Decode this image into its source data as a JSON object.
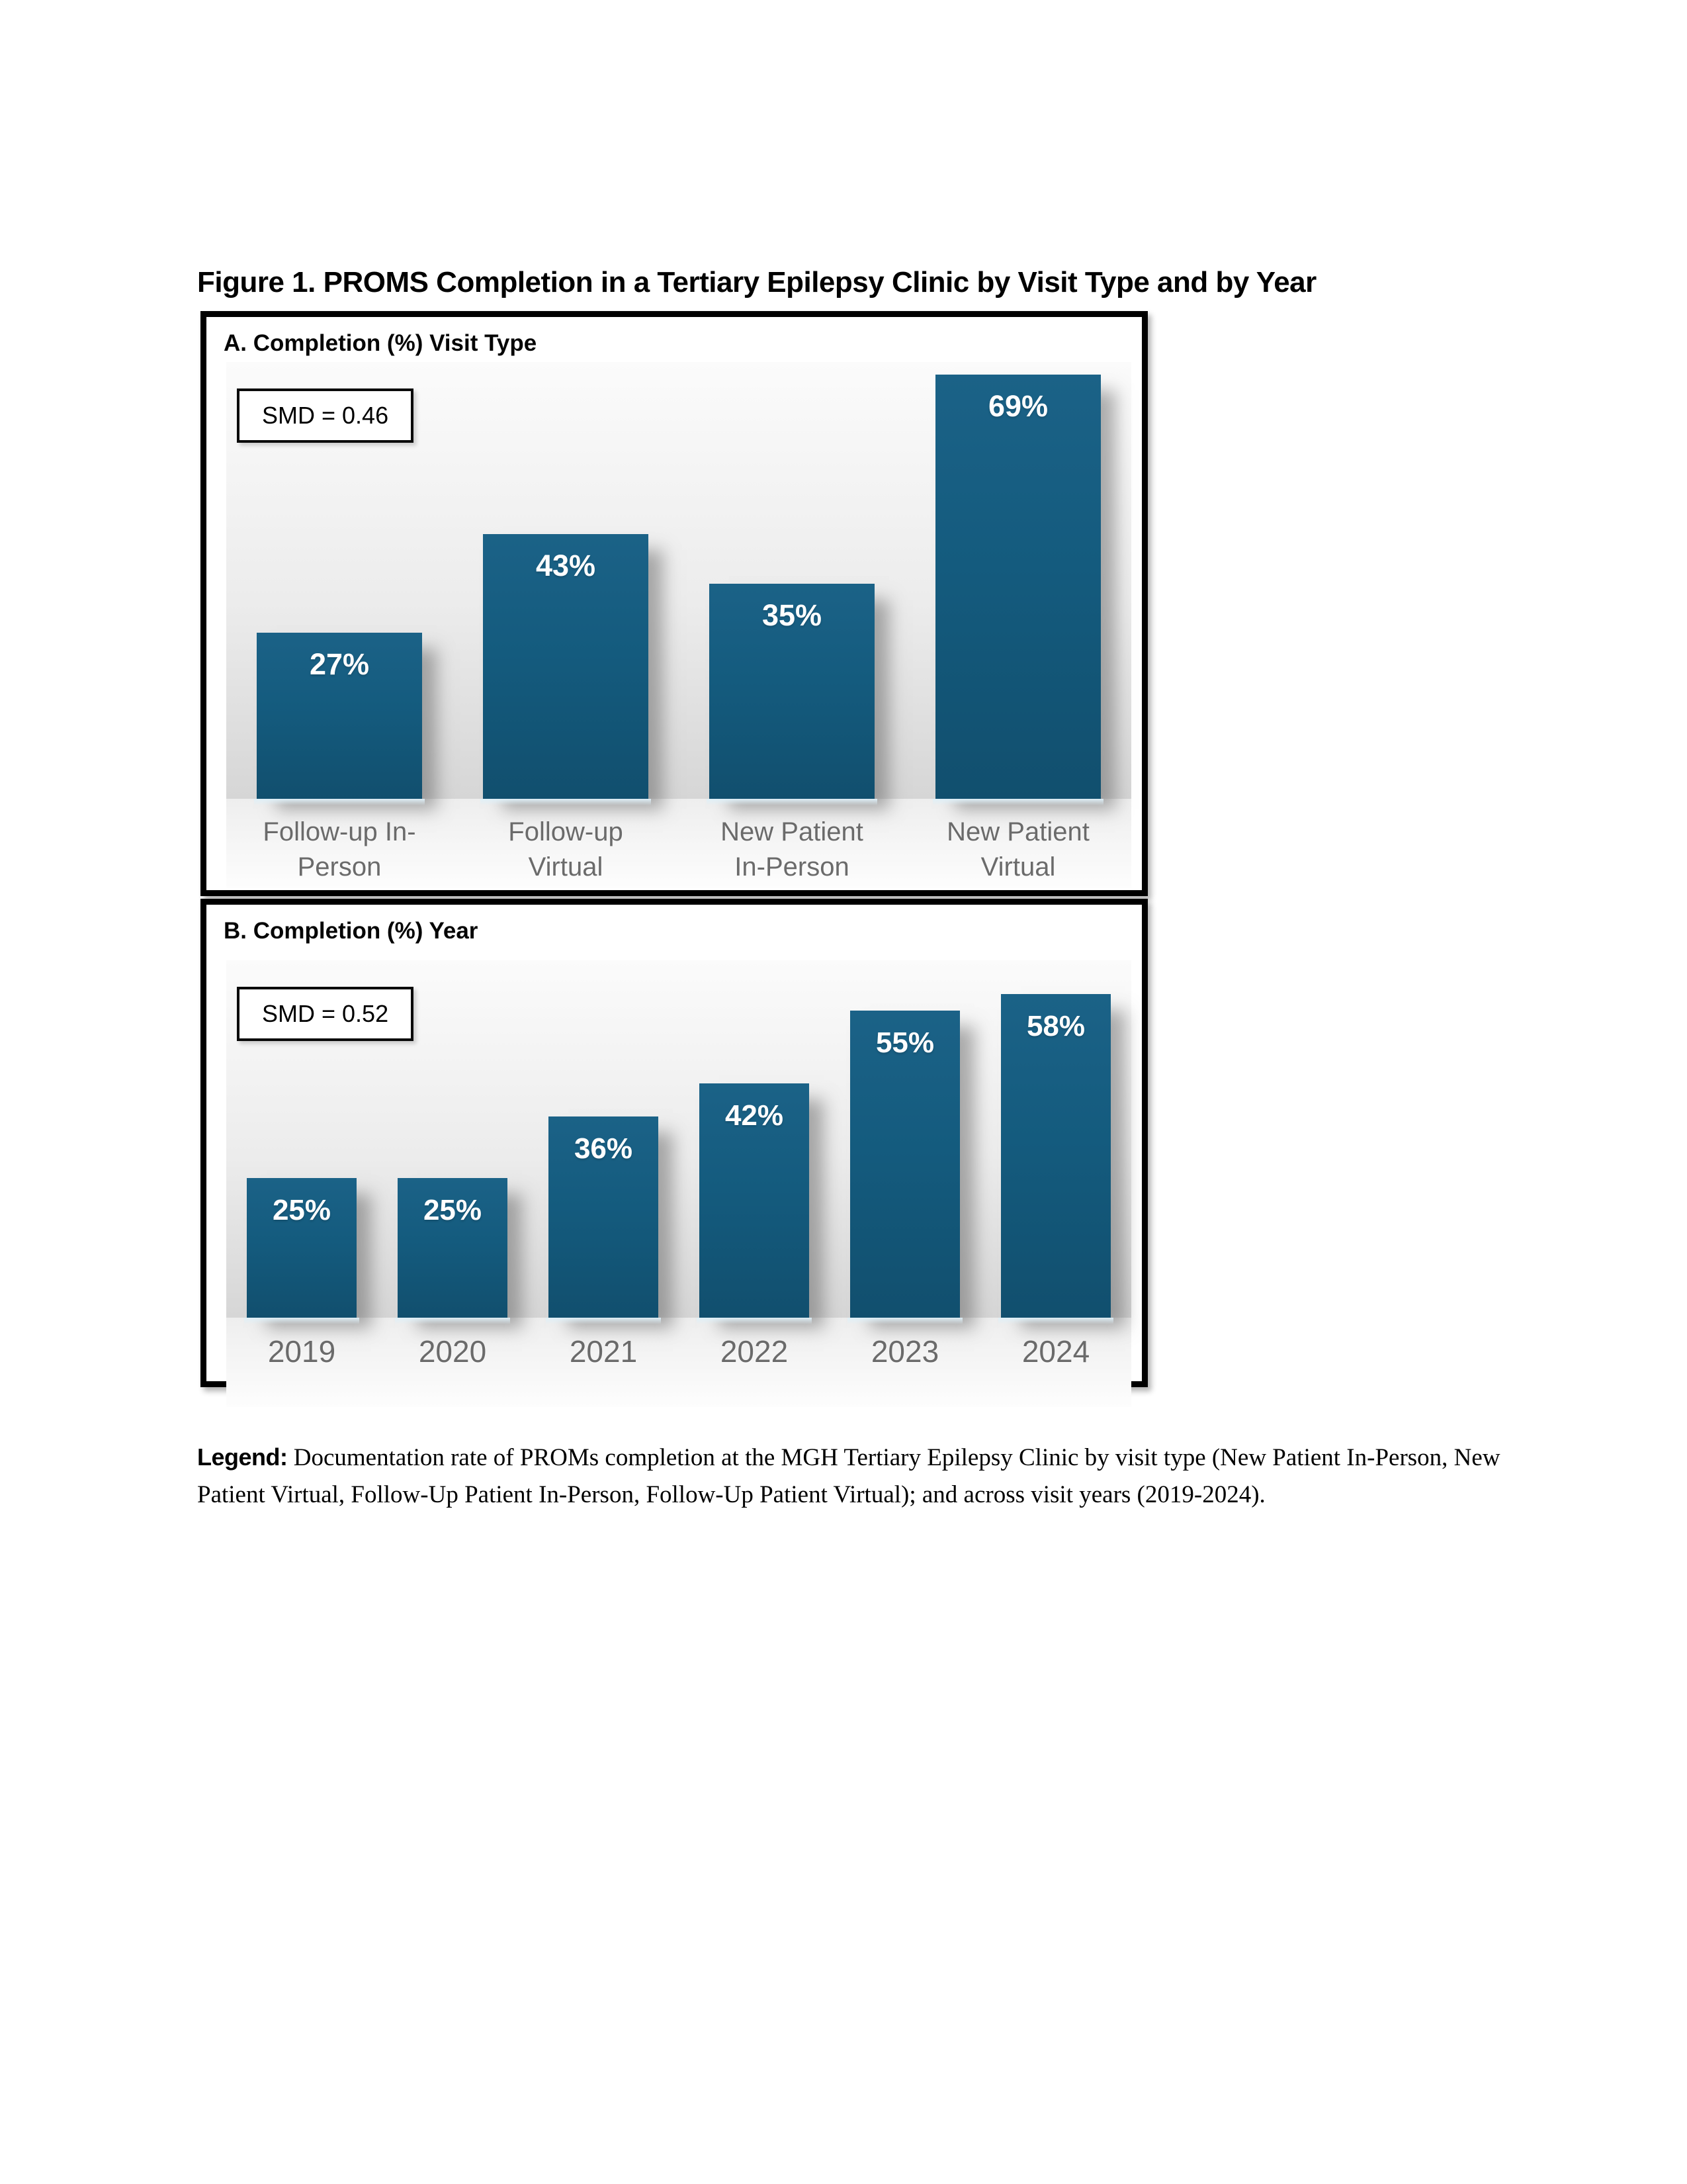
{
  "figure": {
    "title": "Figure 1. PROMS Completion in a Tertiary Epilepsy Clinic by Visit Type and by Year"
  },
  "legend": {
    "label": "Legend:",
    "text": " Documentation rate of PROMs completion at the MGH Tertiary Epilepsy Clinic by visit type (New Patient In-Person, New Patient Virtual, Follow-Up Patient In-Person, Follow-Up Patient Virtual); and across visit years (2019-2024)."
  },
  "colors": {
    "bar_fill": "#145B7E",
    "bar_value_label": "#FFFFFF",
    "category_label": "#6B6B6B",
    "panel_border": "#000000",
    "plot_background_top": "#FBFBFB",
    "plot_background_bottom": "#D6D6D6",
    "baseline_glow": "#DFF0F8"
  },
  "chart_data": [
    {
      "type": "bar",
      "panel": "A",
      "title": "A. Completion (%) Visit Type",
      "annotation": "SMD = 0.46",
      "categories": [
        "Follow-up In-\nPerson",
        "Follow-up\nVirtual",
        "New Patient\nIn-Person",
        "New Patient\nVirtual"
      ],
      "values": [
        27,
        43,
        35,
        69
      ],
      "value_labels": [
        "27%",
        "43%",
        "35%",
        "69%"
      ],
      "xlabel": "",
      "ylabel": "Completion (%)",
      "ylim": [
        0,
        71
      ],
      "grid": false,
      "legend_position": "none"
    },
    {
      "type": "bar",
      "panel": "B",
      "title": "B. Completion (%) Year",
      "annotation": "SMD = 0.52",
      "categories": [
        "2019",
        "2020",
        "2021",
        "2022",
        "2023",
        "2024"
      ],
      "values": [
        25,
        25,
        36,
        42,
        55,
        58
      ],
      "value_labels": [
        "25%",
        "25%",
        "36%",
        "42%",
        "55%",
        "58%"
      ],
      "xlabel": "",
      "ylabel": "Completion (%)",
      "ylim": [
        0,
        64
      ],
      "grid": false,
      "legend_position": "none"
    }
  ]
}
